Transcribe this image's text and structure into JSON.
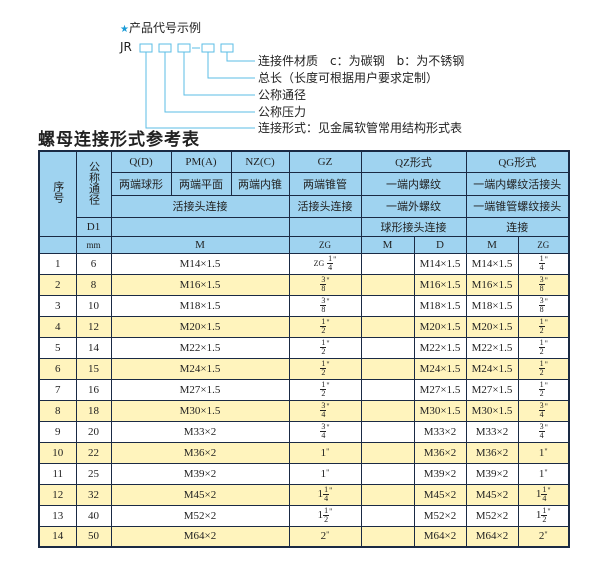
{
  "legend": {
    "title": "产品代号示例",
    "code_prefix": "JR",
    "labels": [
      "连接件材质　c：为碳钢　b：为不锈钢",
      "总长（长度可根据用户要求定制）",
      "公称通径",
      "公称压力",
      "连接形式：见金属软管常用结构形式表"
    ],
    "accent_color": "#1a9bd7"
  },
  "table_title": "螺母连接形式参考表",
  "header": {
    "seq": "序号",
    "dn": "公称通径",
    "d1": "D1",
    "mm": "mm",
    "q": "Q(D)",
    "pm": "PM(A)",
    "nz": "NZ(C)",
    "gz": "GZ",
    "qz": "QZ形式",
    "qg": "QG形式",
    "q_desc": "两端球形",
    "pm_desc": "两端平面",
    "nz_desc": "两端内锥",
    "gz_desc": "两端锥管",
    "qz_desc": "一端内螺纹",
    "qg_desc": "一端内螺纹活接头",
    "union": "活接头连接",
    "gz_union": "活接头连接",
    "qz_desc2": "一端外螺纹",
    "qg_desc2": "一端锥管螺纹接头",
    "qz_desc3": "球形接头连接",
    "qg_desc3": "连接",
    "m": "M",
    "zg": "ZG",
    "qz_m": "M",
    "qz_d": "D",
    "qg_m": "M",
    "qg_zg": "ZG"
  },
  "rows": [
    {
      "no": "1",
      "dn": "6",
      "m": "M14×1.5",
      "zg": {
        "pre": "ZG",
        "whole": "",
        "num": "1",
        "den": "4"
      },
      "qz_d": "M14×1.5",
      "qg_m": "M14×1.5",
      "qg_zg": {
        "whole": "",
        "num": "1",
        "den": "4"
      }
    },
    {
      "no": "2",
      "dn": "8",
      "m": "M16×1.5",
      "zg": {
        "whole": "",
        "num": "3",
        "den": "8"
      },
      "qz_d": "M16×1.5",
      "qg_m": "M16×1.5",
      "qg_zg": {
        "whole": "",
        "num": "3",
        "den": "8"
      }
    },
    {
      "no": "3",
      "dn": "10",
      "m": "M18×1.5",
      "zg": {
        "whole": "",
        "num": "3",
        "den": "8"
      },
      "qz_d": "M18×1.5",
      "qg_m": "M18×1.5",
      "qg_zg": {
        "whole": "",
        "num": "3",
        "den": "8"
      }
    },
    {
      "no": "4",
      "dn": "12",
      "m": "M20×1.5",
      "zg": {
        "whole": "",
        "num": "1",
        "den": "2"
      },
      "qz_d": "M20×1.5",
      "qg_m": "M20×1.5",
      "qg_zg": {
        "whole": "",
        "num": "1",
        "den": "2"
      }
    },
    {
      "no": "5",
      "dn": "14",
      "m": "M22×1.5",
      "zg": {
        "whole": "",
        "num": "1",
        "den": "2"
      },
      "qz_d": "M22×1.5",
      "qg_m": "M22×1.5",
      "qg_zg": {
        "whole": "",
        "num": "1",
        "den": "2"
      }
    },
    {
      "no": "6",
      "dn": "15",
      "m": "M24×1.5",
      "zg": {
        "whole": "",
        "num": "1",
        "den": "2"
      },
      "qz_d": "M24×1.5",
      "qg_m": "M24×1.5",
      "qg_zg": {
        "whole": "",
        "num": "1",
        "den": "2"
      }
    },
    {
      "no": "7",
      "dn": "16",
      "m": "M27×1.5",
      "zg": {
        "whole": "",
        "num": "1",
        "den": "2"
      },
      "qz_d": "M27×1.5",
      "qg_m": "M27×1.5",
      "qg_zg": {
        "whole": "",
        "num": "1",
        "den": "2"
      }
    },
    {
      "no": "8",
      "dn": "18",
      "m": "M30×1.5",
      "zg": {
        "whole": "",
        "num": "3",
        "den": "4"
      },
      "qz_d": "M30×1.5",
      "qg_m": "M30×1.5",
      "qg_zg": {
        "whole": "",
        "num": "3",
        "den": "4"
      }
    },
    {
      "no": "9",
      "dn": "20",
      "m": "M33×2",
      "zg": {
        "whole": "",
        "num": "3",
        "den": "4"
      },
      "qz_d": "M33×2",
      "qg_m": "M33×2",
      "qg_zg": {
        "whole": "",
        "num": "3",
        "den": "4"
      }
    },
    {
      "no": "10",
      "dn": "22",
      "m": "M36×2",
      "zg": {
        "whole": "1",
        "num": "",
        "den": ""
      },
      "qz_d": "M36×2",
      "qg_m": "M36×2",
      "qg_zg": {
        "whole": "1",
        "num": "",
        "den": ""
      }
    },
    {
      "no": "11",
      "dn": "25",
      "m": "M39×2",
      "zg": {
        "whole": "1",
        "num": "",
        "den": ""
      },
      "qz_d": "M39×2",
      "qg_m": "M39×2",
      "qg_zg": {
        "whole": "1",
        "num": "",
        "den": ""
      }
    },
    {
      "no": "12",
      "dn": "32",
      "m": "M45×2",
      "zg": {
        "whole": "1",
        "num": "1",
        "den": "4"
      },
      "qz_d": "M45×2",
      "qg_m": "M45×2",
      "qg_zg": {
        "whole": "1",
        "num": "1",
        "den": "4"
      }
    },
    {
      "no": "13",
      "dn": "40",
      "m": "M52×2",
      "zg": {
        "whole": "1",
        "num": "1",
        "den": "2"
      },
      "qz_d": "M52×2",
      "qg_m": "M52×2",
      "qg_zg": {
        "whole": "1",
        "num": "1",
        "den": "2"
      }
    },
    {
      "no": "14",
      "dn": "50",
      "m": "M64×2",
      "zg": {
        "whole": "2",
        "num": "",
        "den": ""
      },
      "qz_d": "M64×2",
      "qg_m": "M64×2",
      "qg_zg": {
        "whole": "2",
        "num": "",
        "den": ""
      }
    }
  ]
}
